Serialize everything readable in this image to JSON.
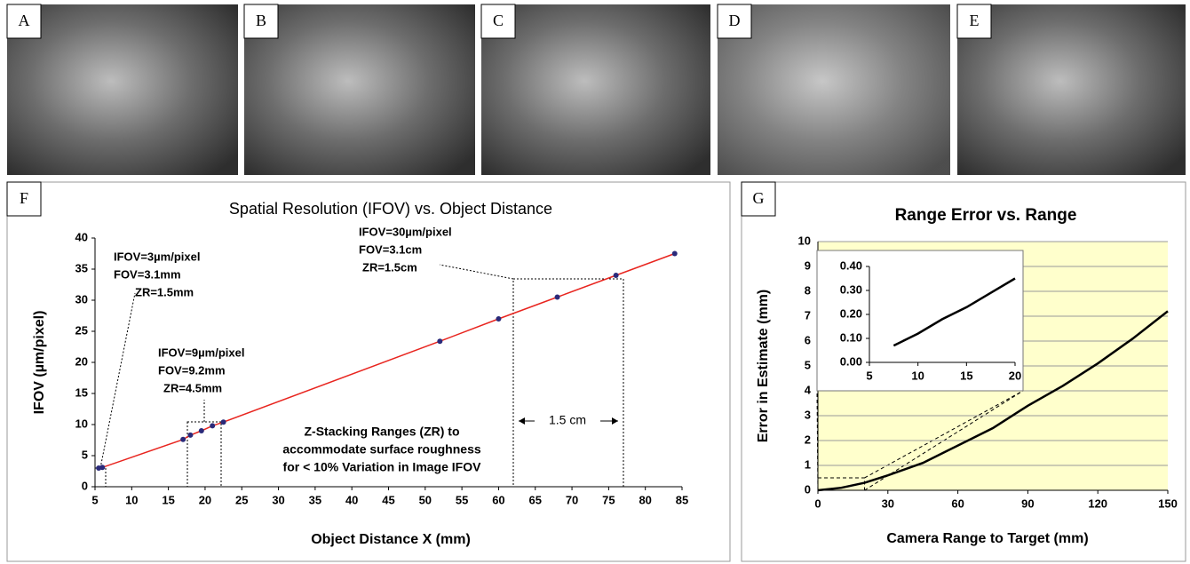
{
  "panels": [
    "A",
    "B",
    "C",
    "D",
    "E",
    "F",
    "G"
  ],
  "chart_data": [
    {
      "type": "line",
      "title": "Spatial Resolution (IFOV) vs. Object Distance",
      "x_label": "Object Distance X (mm)",
      "y_label": "IFOV (µm/pixel)",
      "xlim": [
        5,
        85
      ],
      "xticks": [
        5,
        10,
        15,
        20,
        25,
        30,
        35,
        40,
        45,
        50,
        55,
        60,
        65,
        70,
        75,
        80,
        85
      ],
      "ylim": [
        0,
        40
      ],
      "yticks": [
        0,
        5,
        10,
        15,
        20,
        25,
        30,
        35,
        40
      ],
      "grid": false,
      "series": [
        {
          "color": "#e8251f",
          "marker_color": "#2a2a7a",
          "x": [
            5.5,
            6,
            17,
            18,
            19.5,
            21,
            22.5,
            52,
            60,
            68,
            76,
            84
          ],
          "values": [
            3,
            3.1,
            7.6,
            8.3,
            9,
            9.8,
            10.4,
            23.4,
            27,
            30.5,
            34,
            37.5
          ]
        }
      ],
      "annotations": [
        "IFOV=3µm/pixel",
        "FOV=3.1mm",
        "ZR=1.5mm",
        "IFOV=9µm/pixel",
        "FOV=9.2mm",
        "ZR=4.5mm",
        "IFOV=30µm/pixel",
        "FOV=3.1cm",
        "ZR=1.5cm",
        "Z-Stacking Ranges (ZR) to",
        "accommodate surface roughness",
        "for < 10% Variation in Image IFOV",
        "1.5 cm"
      ]
    },
    {
      "type": "line",
      "title": "Range Error vs. Range",
      "x_label": "Camera Range to Target (mm)",
      "y_label": "Error in Estimate  (mm)",
      "xlim": [
        0,
        150
      ],
      "xticks": [
        0,
        30,
        60,
        90,
        120,
        150
      ],
      "ylim": [
        0,
        10
      ],
      "yticks": [
        0,
        1,
        2,
        3,
        4,
        5,
        6,
        7,
        8,
        9,
        10
      ],
      "grid": true,
      "background": "#ffffcc",
      "series": [
        {
          "color": "#000000",
          "x": [
            0,
            10,
            20,
            30,
            45,
            60,
            75,
            90,
            105,
            120,
            135,
            150
          ],
          "values": [
            0,
            0.1,
            0.3,
            0.6,
            1.1,
            1.8,
            2.5,
            3.4,
            4.2,
            5.1,
            6.1,
            7.2
          ]
        }
      ]
    },
    {
      "type": "line",
      "xlim": [
        5,
        20
      ],
      "xticks": [
        5,
        10,
        15,
        20
      ],
      "ylim": [
        0,
        0.4
      ],
      "yticks": [
        {
          "value": 0,
          "label": "0.00"
        },
        {
          "value": 0.1,
          "label": "0.10"
        },
        {
          "value": 0.2,
          "label": "0.20"
        },
        {
          "value": 0.3,
          "label": "0.30"
        },
        {
          "value": 0.4,
          "label": "0.40"
        }
      ],
      "grid": false,
      "background": "#ffffff",
      "series": [
        {
          "color": "#000000",
          "x": [
            7.5,
            10,
            12.5,
            15,
            17.5,
            20
          ],
          "values": [
            0.07,
            0.12,
            0.18,
            0.23,
            0.29,
            0.35
          ]
        }
      ]
    }
  ]
}
